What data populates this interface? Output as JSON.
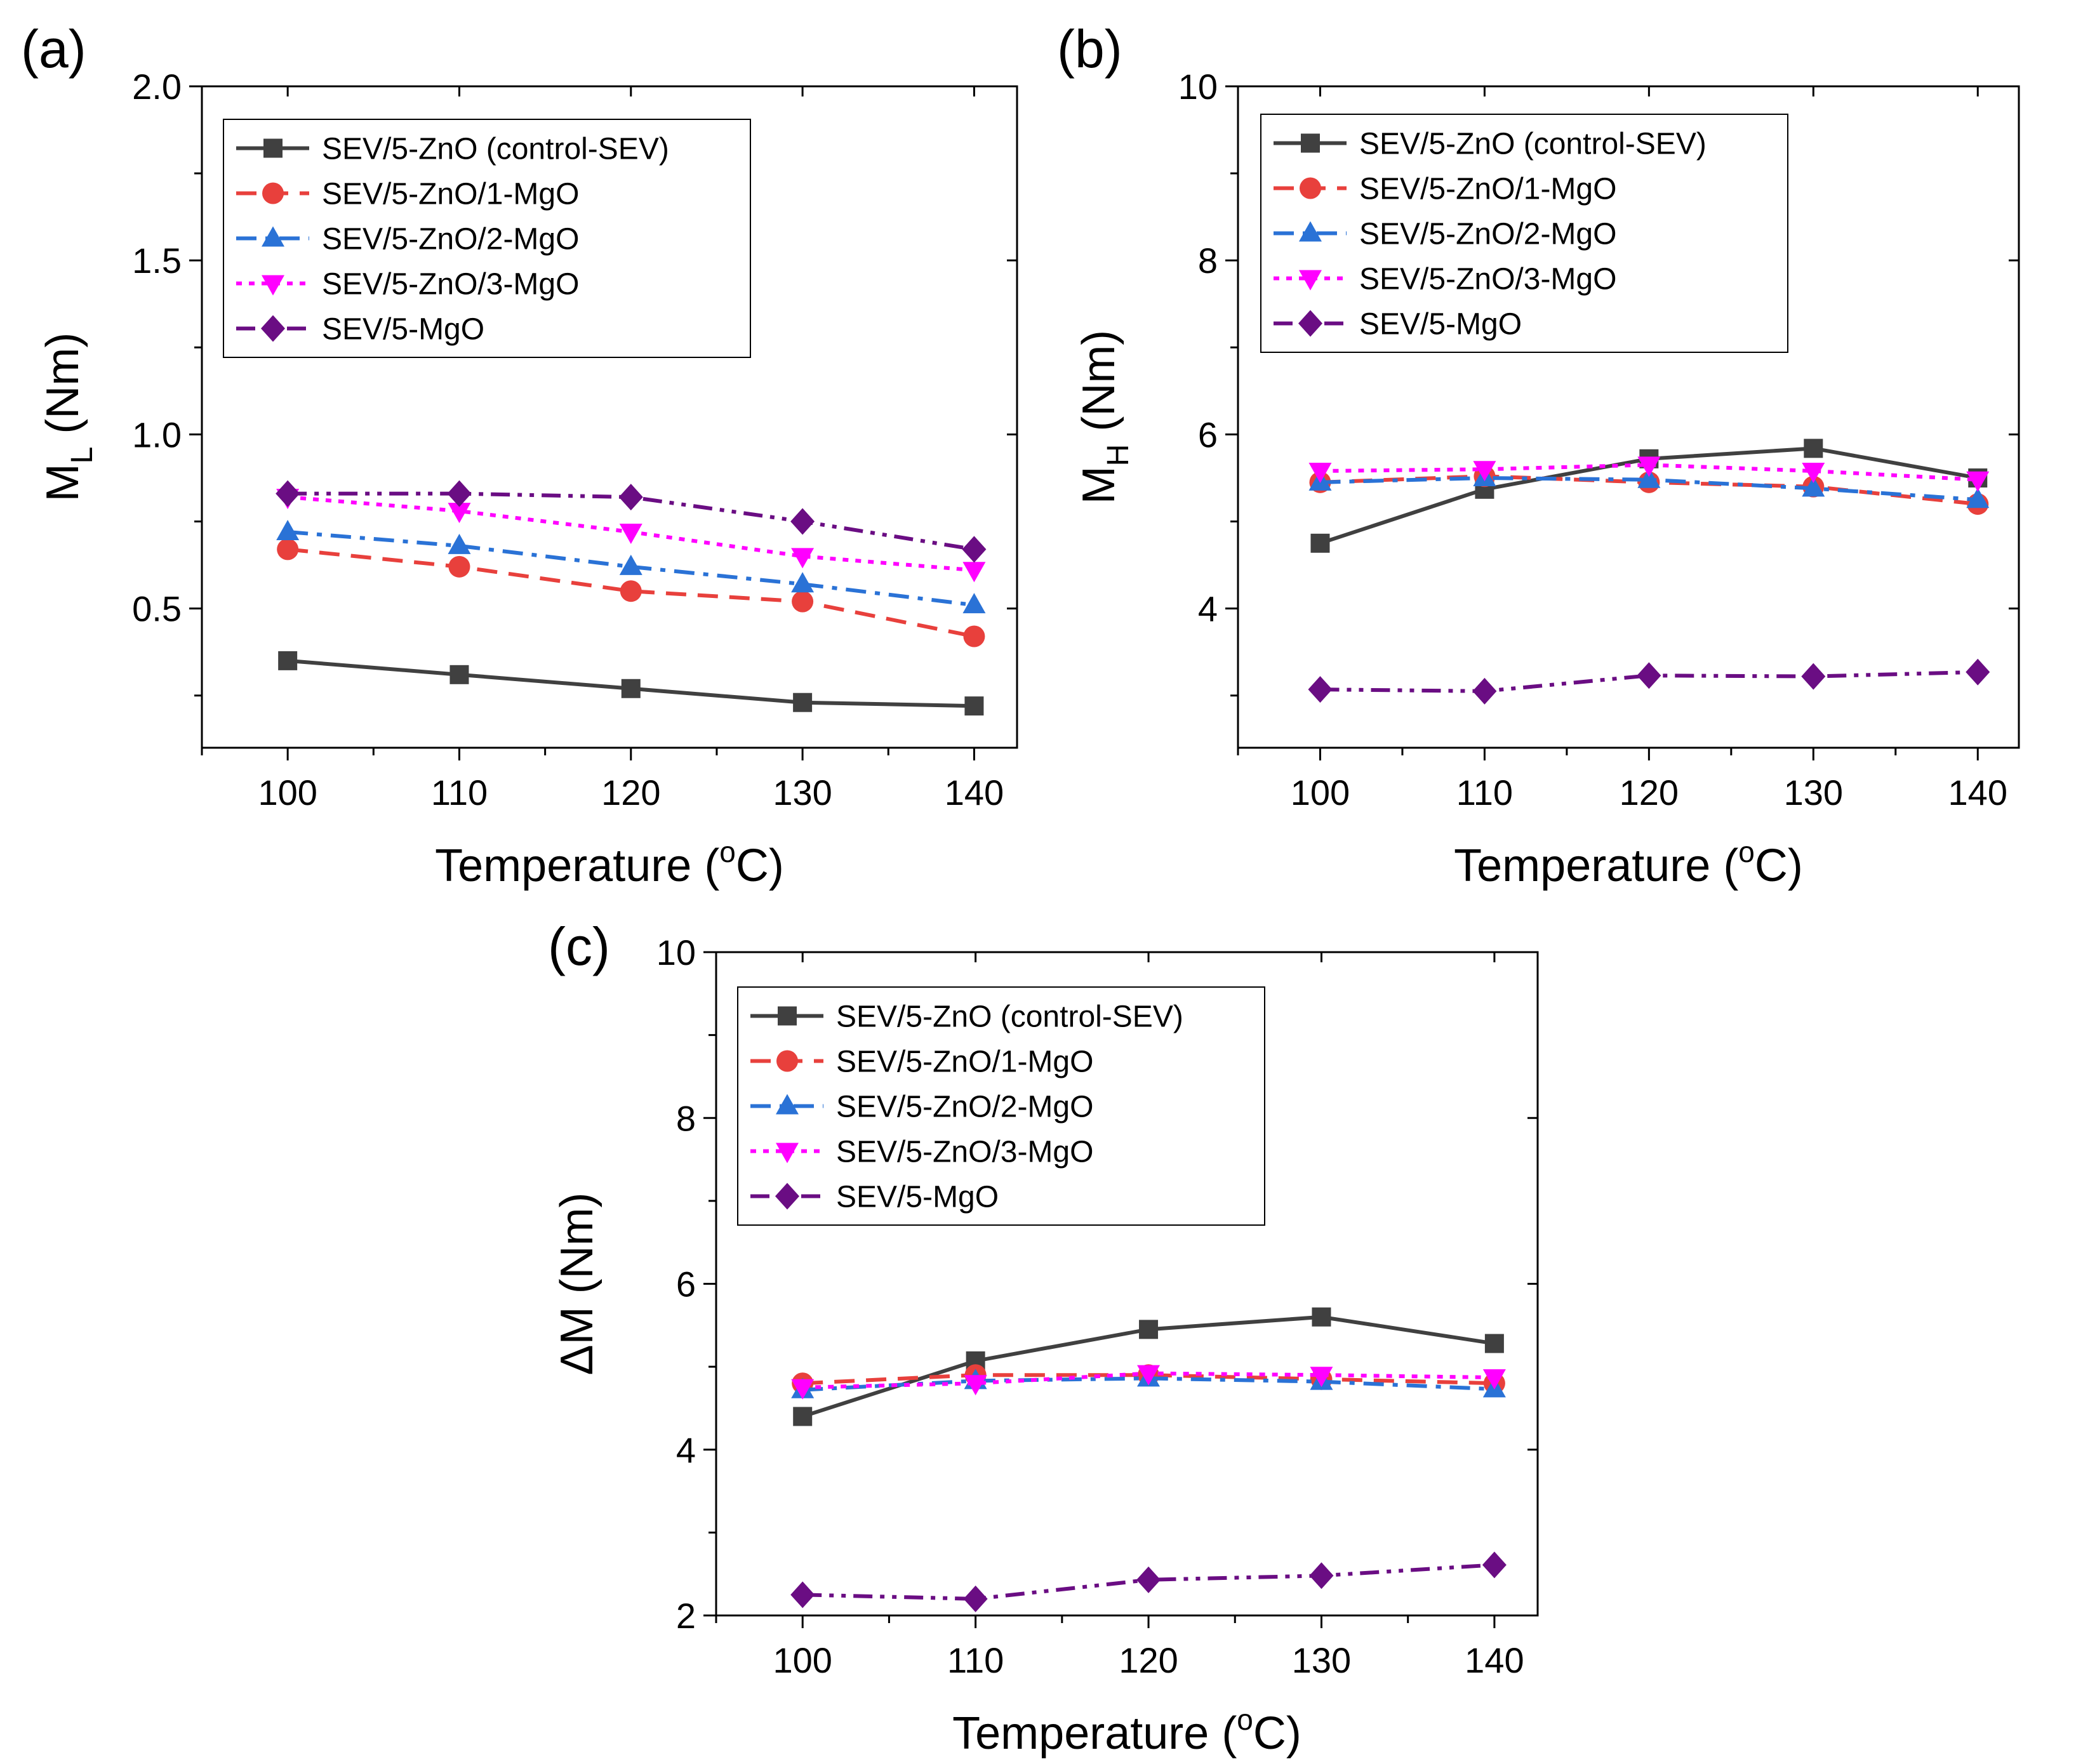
{
  "series_styles": [
    {
      "color": "#404040",
      "marker": "square",
      "dash": "solid"
    },
    {
      "color": "#e8403c",
      "marker": "circle",
      "dash": "dash"
    },
    {
      "color": "#2a72d6",
      "marker": "triangle-up",
      "dash": "dashdot"
    },
    {
      "color": "#ff00ff",
      "marker": "triangle-down",
      "dash": "dot"
    },
    {
      "color": "#6a0d83",
      "marker": "diamond",
      "dash": "dashdotdot"
    }
  ],
  "chart_data": [
    {
      "panel_label": "(a)",
      "type": "line",
      "xlabel": "Temperature (",
      "xlabel_sup": "o",
      "xlabel_tail": "C)",
      "ylabel": "M",
      "ylabel_sub": "L",
      "ylabel_tail": " (Nm)",
      "x": [
        100,
        110,
        120,
        130,
        140
      ],
      "xlim": [
        95,
        142.5
      ],
      "ylim": [
        0.1,
        2.0
      ],
      "xticks": [
        "100",
        "110",
        "120",
        "130",
        "140"
      ],
      "xtick_values": [
        100,
        110,
        120,
        130,
        140
      ],
      "yticks": [
        "0.5",
        "1.0",
        "1.5",
        "2.0"
      ],
      "ytick_values": [
        0.5,
        1.0,
        1.5,
        2.0
      ],
      "legend_position": "top-left",
      "series": [
        {
          "name": "SEV/5-ZnO (control-SEV)",
          "values": [
            0.35,
            0.31,
            0.27,
            0.23,
            0.22
          ]
        },
        {
          "name": "SEV/5-ZnO/1-MgO",
          "values": [
            0.67,
            0.62,
            0.55,
            0.52,
            0.42
          ]
        },
        {
          "name": "SEV/5-ZnO/2-MgO",
          "values": [
            0.72,
            0.68,
            0.62,
            0.57,
            0.51
          ]
        },
        {
          "name": "SEV/5-ZnO/3-MgO",
          "values": [
            0.82,
            0.78,
            0.72,
            0.65,
            0.61
          ]
        },
        {
          "name": "SEV/5-MgO",
          "values": [
            0.83,
            0.83,
            0.82,
            0.75,
            0.67
          ]
        }
      ]
    },
    {
      "panel_label": "(b)",
      "type": "line",
      "xlabel": "Temperature (",
      "xlabel_sup": "o",
      "xlabel_tail": "C)",
      "ylabel": "M",
      "ylabel_sub": "H",
      "ylabel_tail": " (Nm)",
      "x": [
        100,
        110,
        120,
        130,
        140
      ],
      "xlim": [
        95,
        142.5
      ],
      "ylim": [
        2.4,
        10
      ],
      "xticks": [
        "100",
        "110",
        "120",
        "130",
        "140"
      ],
      "xtick_values": [
        100,
        110,
        120,
        130,
        140
      ],
      "yticks": [
        "4",
        "6",
        "8",
        "10"
      ],
      "ytick_values": [
        4,
        6,
        8,
        10
      ],
      "legend_position": "top-left",
      "series": [
        {
          "name": "SEV/5-ZnO (control-SEV)",
          "values": [
            4.75,
            5.37,
            5.72,
            5.84,
            5.5
          ]
        },
        {
          "name": "SEV/5-ZnO/1-MgO",
          "values": [
            5.45,
            5.52,
            5.45,
            5.4,
            5.2
          ]
        },
        {
          "name": "SEV/5-ZnO/2-MgO",
          "values": [
            5.45,
            5.5,
            5.48,
            5.38,
            5.25
          ]
        },
        {
          "name": "SEV/5-ZnO/3-MgO",
          "values": [
            5.58,
            5.6,
            5.65,
            5.58,
            5.48
          ]
        },
        {
          "name": "SEV/5-MgO",
          "values": [
            3.07,
            3.05,
            3.23,
            3.22,
            3.27
          ]
        }
      ]
    },
    {
      "panel_label": "(c)",
      "type": "line",
      "xlabel": "Temperature (",
      "xlabel_sup": "o",
      "xlabel_tail": "C)",
      "ylabel": "ΔM (Nm)",
      "ylabel_sub": "",
      "ylabel_tail": "",
      "x": [
        100,
        110,
        120,
        130,
        140
      ],
      "xlim": [
        95,
        142.5
      ],
      "ylim": [
        2,
        10
      ],
      "xticks": [
        "100",
        "110",
        "120",
        "130",
        "140"
      ],
      "xtick_values": [
        100,
        110,
        120,
        130,
        140
      ],
      "yticks": [
        "2",
        "4",
        "6",
        "8",
        "10"
      ],
      "ytick_values": [
        2,
        4,
        6,
        8,
        10
      ],
      "legend_position": "top-left",
      "series": [
        {
          "name": "SEV/5-ZnO (control-SEV)",
          "values": [
            4.4,
            5.07,
            5.45,
            5.6,
            5.28
          ]
        },
        {
          "name": "SEV/5-ZnO/1-MgO",
          "values": [
            4.8,
            4.9,
            4.9,
            4.85,
            4.8
          ]
        },
        {
          "name": "SEV/5-ZnO/2-MgO",
          "values": [
            4.72,
            4.83,
            4.86,
            4.82,
            4.73
          ]
        },
        {
          "name": "SEV/5-ZnO/3-MgO",
          "values": [
            4.75,
            4.8,
            4.92,
            4.9,
            4.87
          ]
        },
        {
          "name": "SEV/5-MgO",
          "values": [
            2.25,
            2.2,
            2.43,
            2.48,
            2.61
          ]
        }
      ]
    }
  ]
}
